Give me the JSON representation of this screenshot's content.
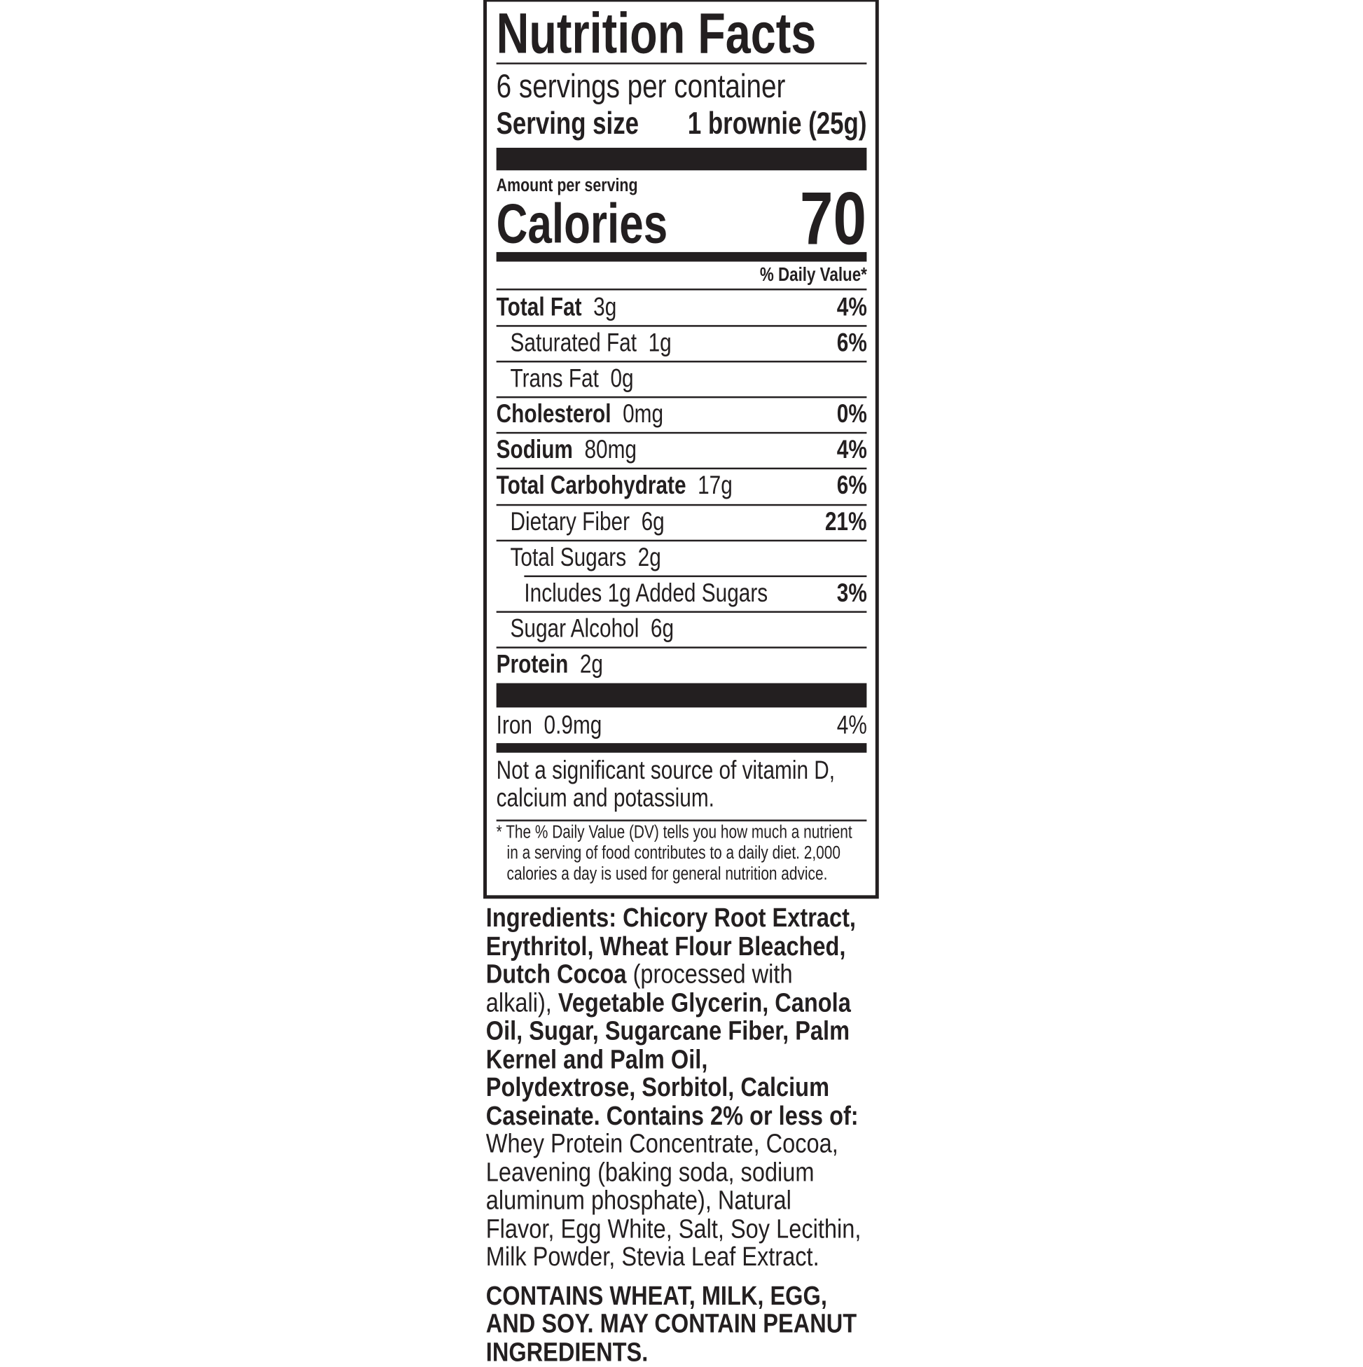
{
  "label": {
    "title": "Nutrition Facts",
    "servings_per_container": "6 servings per container",
    "serving_size_label": "Serving size",
    "serving_size_value": "1 brownie (25g)",
    "amount_per_serving": "Amount per serving",
    "calories_label": "Calories",
    "calories_value": "70",
    "daily_value_header": "% Daily Value*",
    "nutrients": [
      {
        "name": "Total Fat",
        "amount": "3g",
        "dv": "4%"
      },
      {
        "name": "Saturated Fat",
        "amount": "1g",
        "dv": "6%"
      },
      {
        "name": "Trans Fat",
        "amount": "0g",
        "dv": ""
      },
      {
        "name": "Cholesterol",
        "amount": "0mg",
        "dv": "0%"
      },
      {
        "name": "Sodium",
        "amount": "80mg",
        "dv": "4%"
      },
      {
        "name": "Total Carbohydrate",
        "amount": "17g",
        "dv": "6%"
      },
      {
        "name": "Dietary Fiber",
        "amount": "6g",
        "dv": "21%"
      },
      {
        "name": "Total Sugars",
        "amount": "2g",
        "dv": ""
      },
      {
        "name": "Includes 1g Added Sugars",
        "amount": "",
        "dv": "3%"
      },
      {
        "name": "Sugar Alcohol",
        "amount": "6g",
        "dv": ""
      },
      {
        "name": "Protein",
        "amount": "2g",
        "dv": ""
      }
    ],
    "iron": {
      "name": "Iron",
      "amount": "0.9mg",
      "dv": "4%"
    },
    "not_significant": [
      "Not a significant source of vitamin D,",
      "calcium and potassium."
    ],
    "footnote": [
      "* The % Daily Value (DV) tells you how much a nutrient",
      "in a serving of food contributes to a daily diet. 2,000",
      "calories a day is used for general nutrition advice."
    ]
  },
  "ingredients": {
    "segments": [
      "Ingredients: Chicory Root Extract,",
      "Erythritol, Wheat Flour Bleached,",
      "Dutch Cocoa",
      " (processed with",
      "alkali), ",
      "Vegetable Glycerin, Canola",
      "Oil, Sugar, Sugarcane Fiber, Palm",
      "Kernel and Palm Oil,",
      "Polydextrose, Sorbitol, Calcium",
      "Caseinate. Contains 2% or less of:",
      "Whey Protein Concentrate, Cocoa,",
      "Leavening (baking soda, sodium",
      "aluminum phosphate), Natural",
      "Flavor, Egg White, Salt, Soy Lecithin,",
      "Milk Powder, Stevia Leaf Extract."
    ],
    "allergens": [
      "CONTAINS WHEAT, MILK, EGG,",
      "AND SOY. MAY CONTAIN PEANUT",
      "INGREDIENTS."
    ]
  }
}
